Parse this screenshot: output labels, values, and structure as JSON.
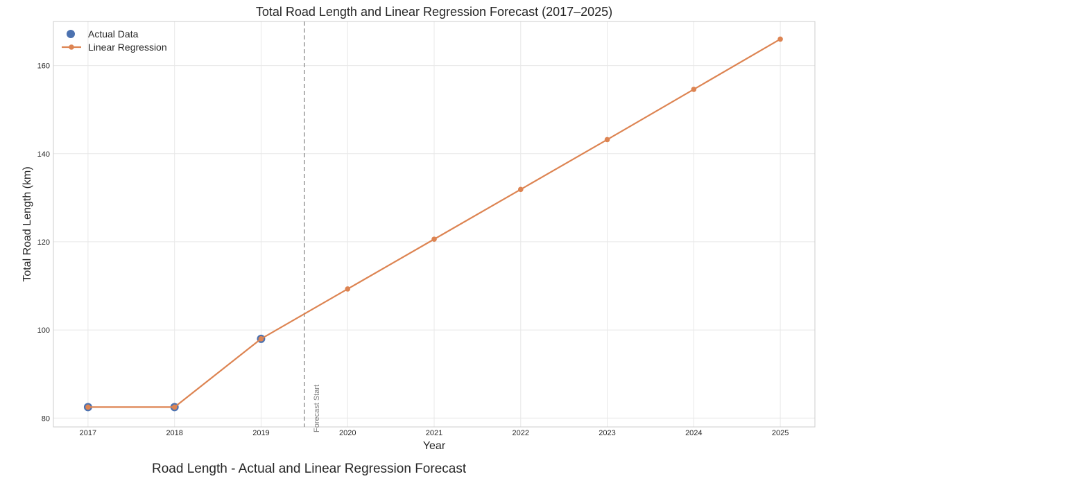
{
  "caption": "Road Length - Actual and Linear Regression Forecast",
  "colors": {
    "actual": "#4c72b0",
    "regression": "#dd8452",
    "forecast_line": "#9e9e9e",
    "grid": "#e8e8e8",
    "frame": "#cccccc",
    "text": "#262626"
  },
  "chart_data": {
    "type": "line",
    "title": "Total Road Length and Linear Regression Forecast (2017–2025)",
    "xlabel": "Year",
    "ylabel": "Total Road Length (km)",
    "x": [
      2017,
      2018,
      2019,
      2020,
      2021,
      2022,
      2023,
      2024,
      2025
    ],
    "xticks": [
      "2017",
      "2018",
      "2019",
      "2020",
      "2021",
      "2022",
      "2023",
      "2024",
      "2025"
    ],
    "yticks": [
      80,
      100,
      120,
      140,
      160
    ],
    "xlim": [
      2016.6,
      2025.4
    ],
    "ylim": [
      78,
      170
    ],
    "grid": true,
    "legend": "top-left",
    "series": [
      {
        "name": "Actual Data",
        "kind": "scatter",
        "x": [
          2017,
          2018,
          2019
        ],
        "values": [
          82.5,
          82.5,
          98
        ]
      },
      {
        "name": "Linear Regression",
        "kind": "line",
        "x": [
          2017,
          2018,
          2019,
          2020,
          2021,
          2022,
          2023,
          2024,
          2025
        ],
        "values": [
          82.5,
          82.5,
          98,
          109.3,
          120.6,
          131.9,
          143.2,
          154.6,
          166
        ]
      }
    ],
    "annotations": [
      {
        "type": "vline",
        "x": 2019.5,
        "label": "Forecast Start"
      }
    ]
  }
}
